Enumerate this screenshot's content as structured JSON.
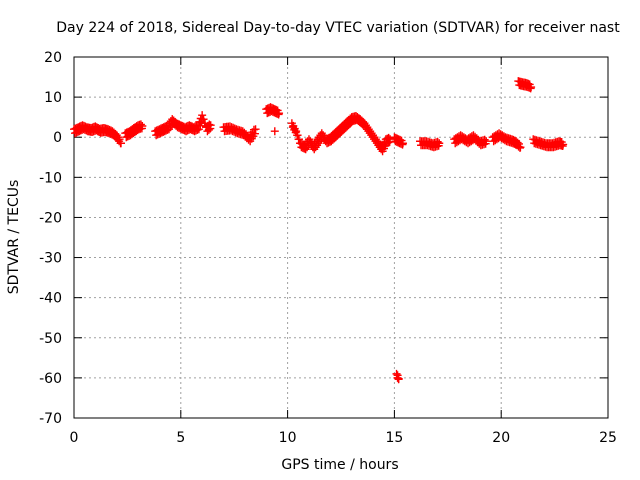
{
  "chart_data": {
    "type": "scatter",
    "title": "Day 224 of 2018, Sidereal Day-to-day VTEC variation (SDTVAR) for receiver nast",
    "xlabel": "GPS time / hours",
    "ylabel": "SDTVAR / TECUs",
    "xlim": [
      0,
      25
    ],
    "ylim": [
      -70,
      20
    ],
    "xticks": [
      0,
      5,
      10,
      15,
      20,
      25
    ],
    "yticks": [
      20,
      10,
      0,
      -10,
      -20,
      -30,
      -40,
      -50,
      -60,
      -70
    ],
    "grid": true,
    "marker": "+",
    "color": "#ff0000",
    "series": [
      {
        "name": "SDTVAR",
        "segments": [
          {
            "x": [
              0.0,
              0.2,
              0.4,
              0.6,
              0.8,
              1.0,
              1.2,
              1.4,
              1.6,
              1.8,
              2.0,
              2.2
            ],
            "y": [
              1.5,
              2.0,
              2.5,
              2.0,
              1.8,
              2.2,
              1.6,
              1.8,
              1.5,
              1.0,
              0.0,
              -1.5
            ]
          },
          {
            "x": [
              2.4,
              2.6,
              2.8,
              3.0,
              3.2
            ],
            "y": [
              0.5,
              1.0,
              1.8,
              2.5,
              2.8
            ]
          },
          {
            "x": [
              3.8,
              4.0,
              4.2,
              4.4,
              4.6,
              4.8,
              5.0,
              5.2,
              5.4,
              5.6,
              5.8,
              6.0,
              6.2,
              6.4
            ],
            "y": [
              1.0,
              1.5,
              2.0,
              2.5,
              4.0,
              3.0,
              2.5,
              2.0,
              2.5,
              2.0,
              2.5,
              5.0,
              2.0,
              3.0
            ]
          },
          {
            "x": [
              7.0,
              7.3,
              7.6,
              7.9,
              8.2,
              8.5
            ],
            "y": [
              2.0,
              2.2,
              1.5,
              1.0,
              -0.5,
              2.0
            ]
          },
          {
            "x": [
              9.0,
              9.2,
              9.4,
              9.6
            ],
            "y": [
              6.5,
              7.0,
              6.5,
              6.0
            ]
          },
          {
            "x": [
              9.4
            ],
            "y": [
              1.5
            ]
          },
          {
            "x": [
              10.2,
              10.4,
              10.6,
              10.8,
              11.0,
              11.2,
              11.4,
              11.6,
              11.8,
              12.0,
              12.2,
              12.4,
              12.6,
              12.8,
              13.0,
              13.2,
              13.4,
              13.6,
              13.8,
              14.0,
              14.2,
              14.4,
              14.6,
              14.8
            ],
            "y": [
              3.0,
              1.0,
              -2.0,
              -2.5,
              -1.0,
              -2.5,
              -1.0,
              0.5,
              -1.0,
              -0.5,
              0.5,
              1.5,
              2.5,
              3.5,
              4.5,
              4.8,
              4.0,
              3.0,
              1.5,
              0.0,
              -1.5,
              -3.0,
              -1.0,
              -0.5
            ]
          },
          {
            "x": [
              15.0,
              15.2,
              15.4
            ],
            "y": [
              -0.5,
              -1.0,
              -1.5
            ]
          },
          {
            "x": [
              16.2,
              16.5,
              16.8,
              17.1
            ],
            "y": [
              -1.5,
              -1.5,
              -2.0,
              -1.5
            ]
          },
          {
            "x": [
              17.8,
              18.1,
              18.4,
              18.7,
              19.0,
              19.3
            ],
            "y": [
              -1.0,
              0.0,
              -1.0,
              0.0,
              -1.5,
              -1.0
            ]
          },
          {
            "x": [
              19.6,
              19.9,
              20.2,
              20.5,
              20.7,
              20.9
            ],
            "y": [
              -0.5,
              0.5,
              -0.5,
              -1.0,
              -1.5,
              -2.5
            ]
          },
          {
            "x": [
              21.5,
              21.8,
              22.1,
              22.4,
              22.7,
              22.9
            ],
            "y": [
              -1.0,
              -1.5,
              -2.0,
              -2.0,
              -1.5,
              -1.8
            ]
          },
          {
            "x": [
              20.8,
              21.0,
              21.2,
              21.4
            ],
            "y": [
              13.5,
              13.2,
              13.0,
              12.5
            ]
          },
          {
            "x": [
              15.1,
              15.2
            ],
            "y": [
              -59.5,
              -60.2
            ]
          }
        ]
      }
    ]
  }
}
